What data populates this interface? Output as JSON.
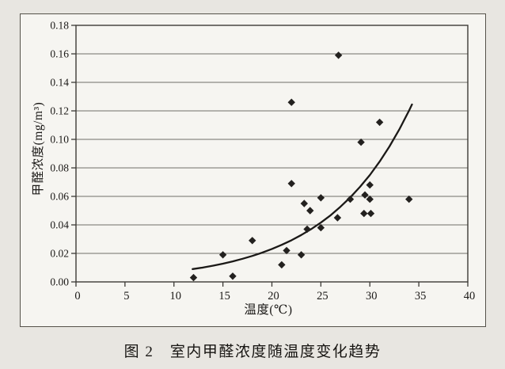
{
  "colors": {
    "page_background": "#e8e6e1",
    "paper": "#f6f5f1",
    "border": "#55524a",
    "grid": "#706e69",
    "axis": "#3c3a36",
    "text": "#1b1917",
    "marker": "#23211f",
    "trend_line": "#1b1917"
  },
  "chart_data": {
    "type": "scatter",
    "title": "图 2　室内甲醛浓度随温度变化趋势",
    "xlabel": "温度(℃)",
    "ylabel": "甲醛浓度(mg/m³)",
    "xlim": [
      0,
      40
    ],
    "ylim": [
      0,
      0.18
    ],
    "xticks": [
      "0",
      "5",
      "10",
      "15",
      "20",
      "25",
      "30",
      "35",
      "40"
    ],
    "yticks": [
      "0.00",
      "0.02",
      "0.04",
      "0.06",
      "0.08",
      "0.10",
      "0.12",
      "0.14",
      "0.16",
      "0.18"
    ],
    "grid": "horizontal",
    "legend": "none",
    "marker": "diamond",
    "points": [
      [
        12,
        0.003
      ],
      [
        15,
        0.019
      ],
      [
        16,
        0.004
      ],
      [
        18,
        0.029
      ],
      [
        21,
        0.012
      ],
      [
        21.5,
        0.022
      ],
      [
        22,
        0.069
      ],
      [
        22,
        0.126
      ],
      [
        23,
        0.019
      ],
      [
        23.3,
        0.055
      ],
      [
        23.6,
        0.037
      ],
      [
        23.9,
        0.05
      ],
      [
        25,
        0.038
      ],
      [
        25,
        0.059
      ],
      [
        26.7,
        0.045
      ],
      [
        26.8,
        0.159
      ],
      [
        28,
        0.058
      ],
      [
        29.1,
        0.098
      ],
      [
        29.4,
        0.048
      ],
      [
        29.5,
        0.061
      ],
      [
        30,
        0.058
      ],
      [
        30,
        0.068
      ],
      [
        30.1,
        0.048
      ],
      [
        31,
        0.112
      ],
      [
        34,
        0.058
      ]
    ],
    "trendline": {
      "shape": "exponential",
      "points": [
        [
          11.9,
          0.009
        ],
        [
          13,
          0.0101
        ],
        [
          14,
          0.0114
        ],
        [
          15,
          0.0128
        ],
        [
          16,
          0.0144
        ],
        [
          17,
          0.0162
        ],
        [
          18,
          0.0182
        ],
        [
          19,
          0.0205
        ],
        [
          20,
          0.0231
        ],
        [
          21,
          0.026
        ],
        [
          22,
          0.0292
        ],
        [
          23,
          0.0329
        ],
        [
          24,
          0.037
        ],
        [
          25,
          0.0416
        ],
        [
          26,
          0.0468
        ],
        [
          27,
          0.0527
        ],
        [
          28,
          0.0593
        ],
        [
          29,
          0.0667
        ],
        [
          30,
          0.075
        ],
        [
          31,
          0.0844
        ],
        [
          32,
          0.095
        ],
        [
          33,
          0.1069
        ],
        [
          34,
          0.1202
        ],
        [
          34.3,
          0.1245
        ]
      ]
    }
  }
}
